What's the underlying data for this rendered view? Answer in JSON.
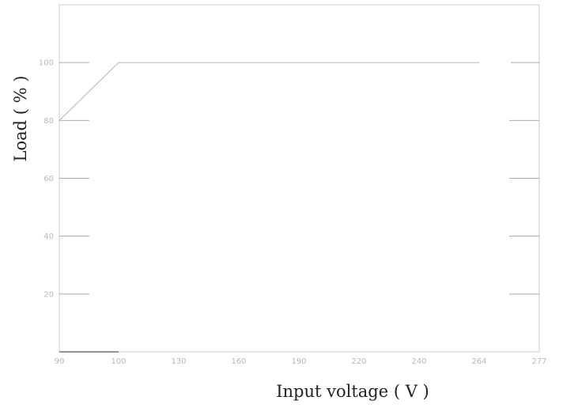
{
  "chart_data": {
    "type": "line",
    "title": "",
    "xlabel": "Input voltage ( V )",
    "ylabel": "Load ( % )",
    "x_categories": [
      "90",
      "100",
      "130",
      "160",
      "190",
      "220",
      "240",
      "264",
      "277"
    ],
    "y_ticks": [
      "20",
      "40",
      "60",
      "80",
      "100"
    ],
    "ylim": [
      0,
      120
    ],
    "series": [
      {
        "points": [
          {
            "x": "90",
            "y": 80
          },
          {
            "x": "100",
            "y": 100
          },
          {
            "x": "264",
            "y": 100
          }
        ]
      }
    ],
    "grid": false,
    "colors": {
      "plot_border": "#cccccc",
      "series_line": "#bdbdbd",
      "tick_mark": "#aaaaaa",
      "tick_label": "#b8b8b8",
      "axis_title": "#222222"
    }
  }
}
